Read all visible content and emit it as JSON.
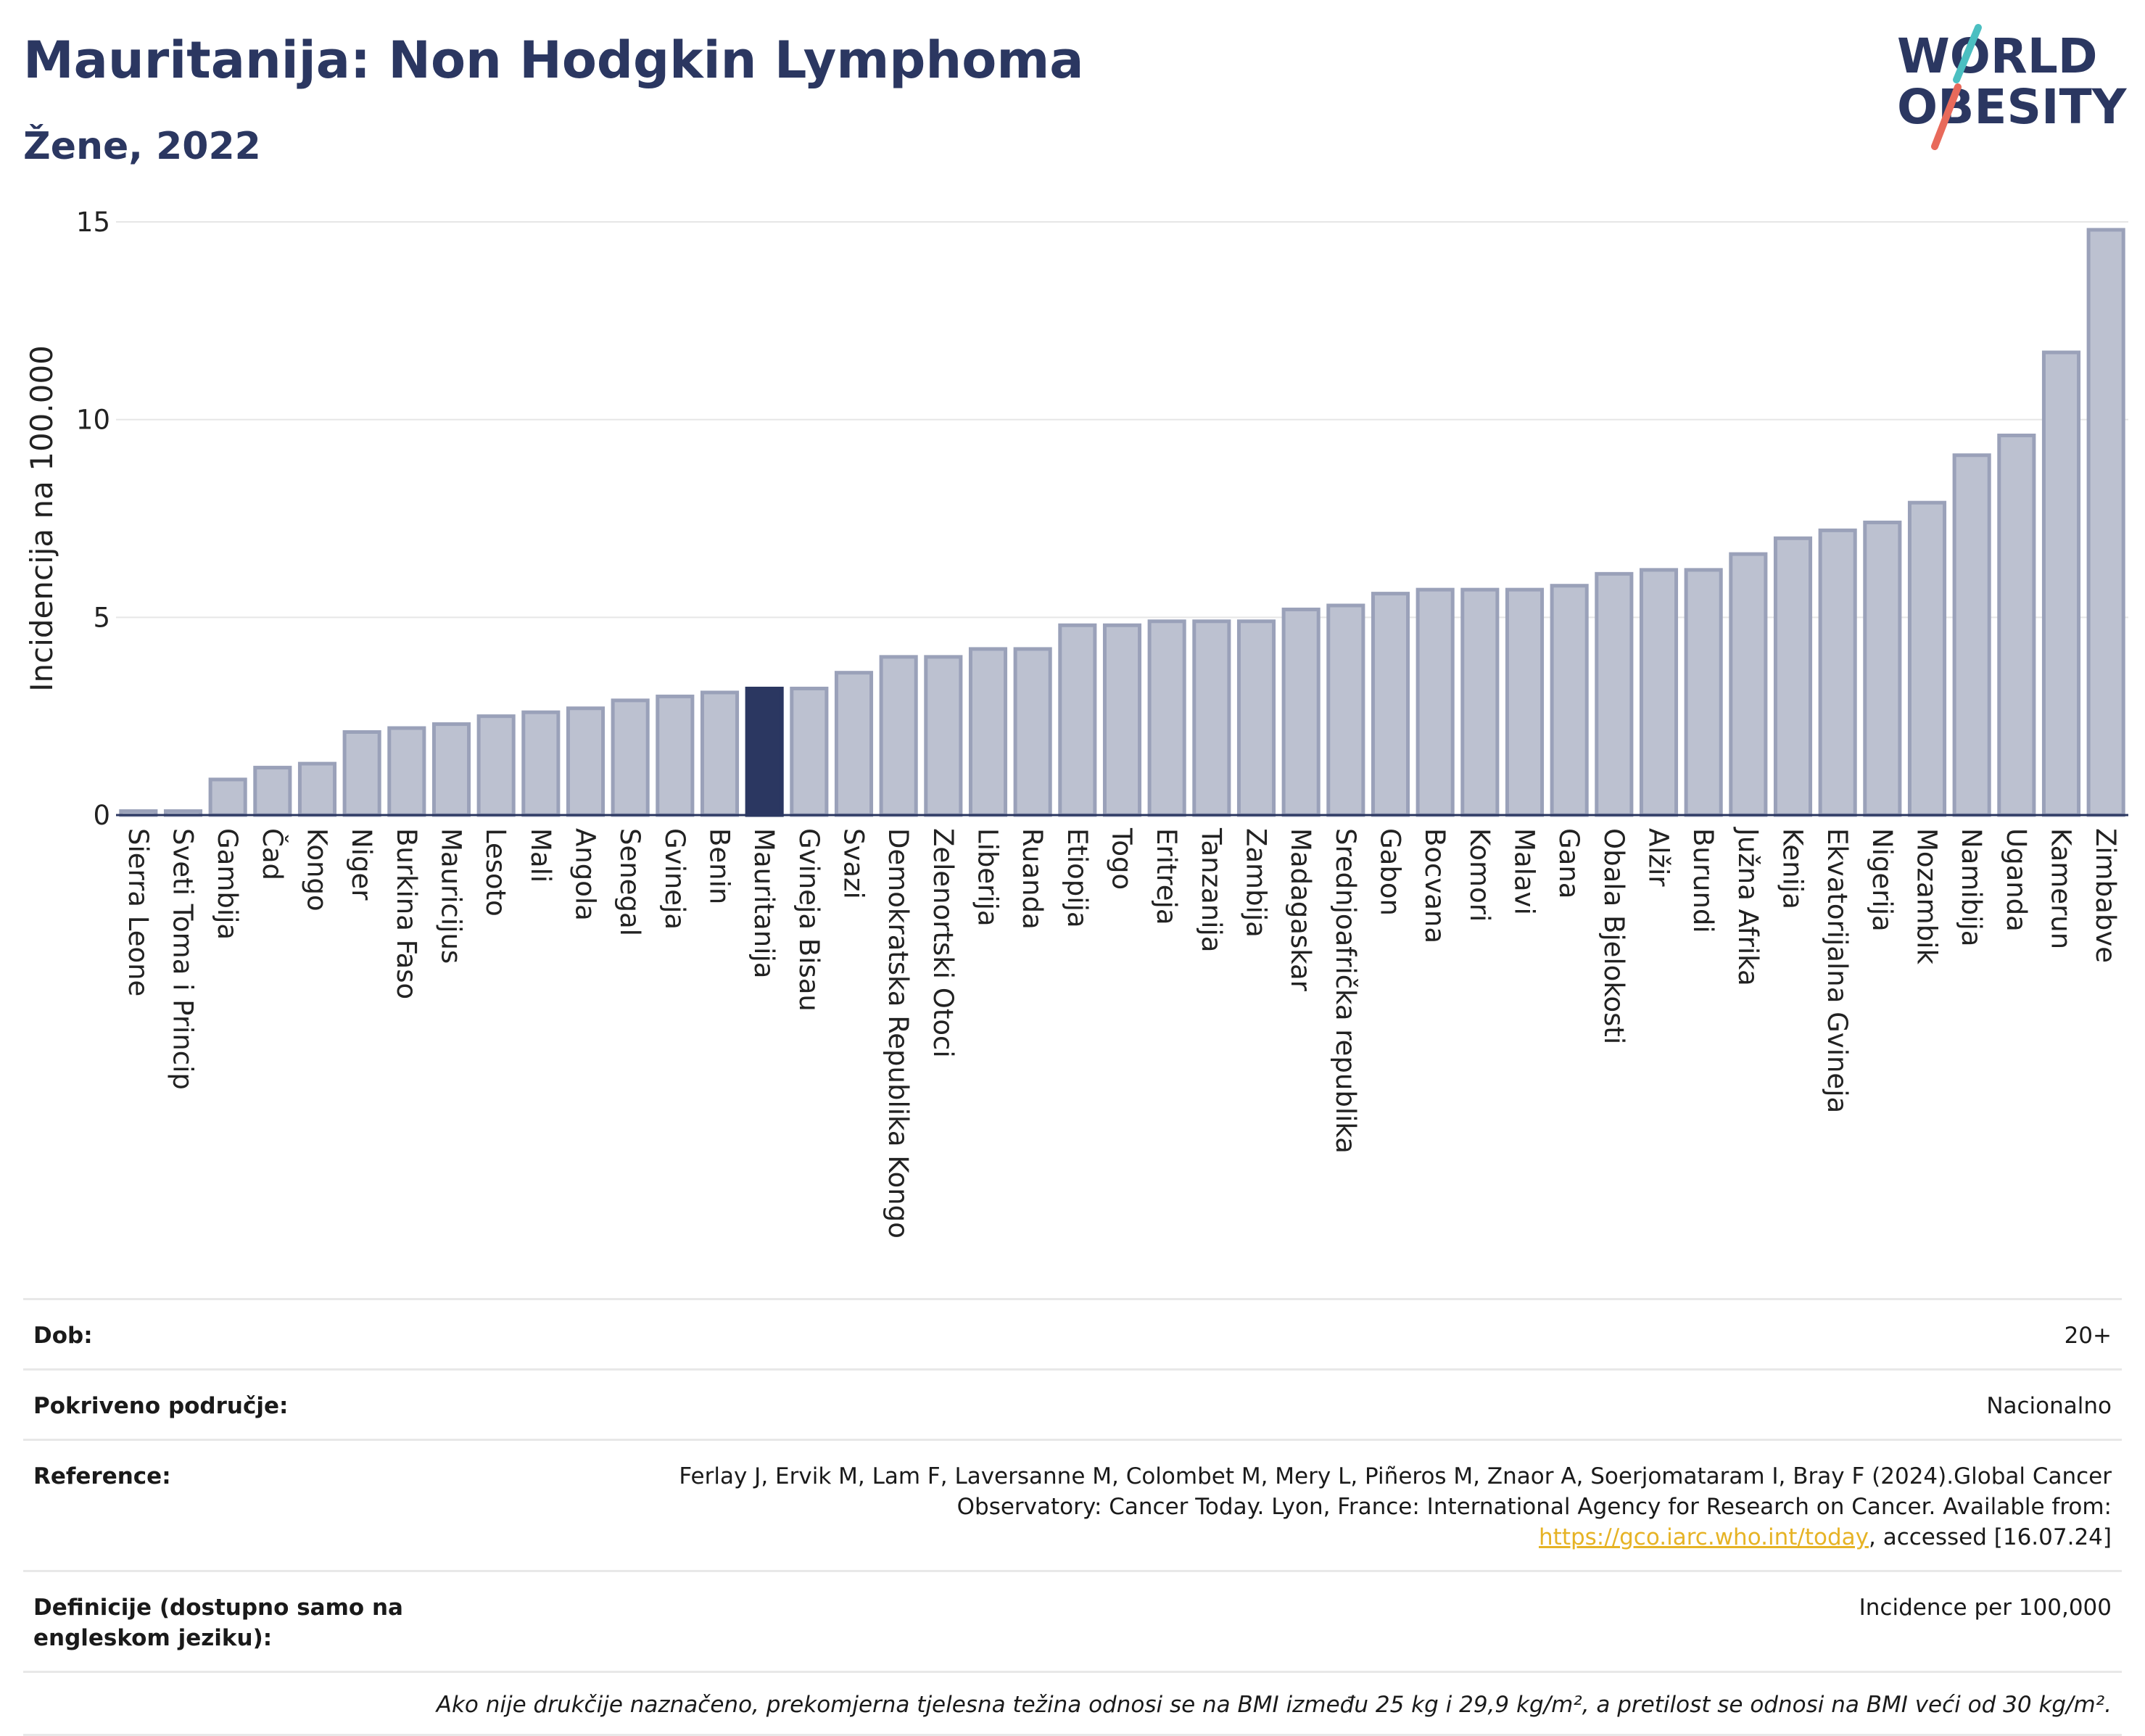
{
  "header": {
    "title": "Mauritanija: Non Hodgkin Lymphoma",
    "subtitle": "Žene, 2022"
  },
  "logo": {
    "line1": "WORLD",
    "line2": "OBESITY",
    "accent_colors": [
      "#4bbfc1",
      "#e86a5b"
    ]
  },
  "colors": {
    "bar": "#bcc1d0",
    "bar_edge": "#9aa1b9",
    "highlight": "#2b3761",
    "grid": "#e6e6e6"
  },
  "chart_data": {
    "type": "bar",
    "title": "",
    "xlabel": "",
    "ylabel": "Incidencija na 100.000",
    "ylim": [
      0,
      15
    ],
    "yticks": [
      0,
      5,
      10,
      15
    ],
    "grid": true,
    "highlight": "Mauritanija",
    "categories": [
      "Sierra Leone",
      "Sveti Toma i Princip",
      "Gambija",
      "Čad",
      "Kongo",
      "Niger",
      "Burkina Faso",
      "Mauricijus",
      "Lesoto",
      "Mali",
      "Angola",
      "Senegal",
      "Gvineja",
      "Benin",
      "Mauritanija",
      "Gvineja Bisau",
      "Svazi",
      "Demokratska Republika Kongo",
      "Zelenortski Otoci",
      "Liberija",
      "Ruanda",
      "Etiopija",
      "Togo",
      "Eritreja",
      "Tanzanija",
      "Zambija",
      "Madagaskar",
      "Srednjoafrička republika",
      "Gabon",
      "Bocvana",
      "Komori",
      "Malavi",
      "Gana",
      "Obala Bjelokosti",
      "Alžir",
      "Burundi",
      "Južna Afrika",
      "Kenija",
      "Ekvatorijalna Gvineja",
      "Nigerija",
      "Mozambik",
      "Namibija",
      "Uganda",
      "Kamerun",
      "Zimbabve"
    ],
    "values": [
      0.1,
      0.1,
      0.9,
      1.2,
      1.3,
      2.1,
      2.2,
      2.3,
      2.5,
      2.6,
      2.7,
      2.9,
      3.0,
      3.1,
      3.2,
      3.2,
      3.6,
      4.0,
      4.0,
      4.2,
      4.2,
      4.8,
      4.8,
      4.9,
      4.9,
      4.9,
      5.2,
      5.3,
      5.6,
      5.7,
      5.7,
      5.7,
      5.8,
      6.1,
      6.2,
      6.2,
      6.6,
      7.0,
      7.2,
      7.4,
      7.9,
      9.1,
      9.6,
      11.7,
      14.8
    ]
  },
  "meta": {
    "age_label": "Dob:",
    "age_value": "20+",
    "area_label": "Pokriveno područje:",
    "area_value": "Nacionalno",
    "ref_label": "Reference:",
    "ref_text1": "Ferlay J, Ervik M, Lam F, Laversanne M, Colombet M, Mery L, Piñeros M, Znaor A, Soerjomataram I, Bray F (2024).Global Cancer Observatory: Cancer Today. Lyon, France: International Agency for Research on Cancer. Available from: ",
    "ref_link": "https://gco.iarc.who.int/today",
    "ref_text2": ", accessed [16.07.24]",
    "def_label": "Definicije (dostupno samo na engleskom jeziku):",
    "def_value": "Incidence per 100,000",
    "note": "Ako nije drukčije naznačeno, prekomjerna tjelesna težina odnosi se na BMI između 25 kg i 29,9 kg/m², a pretilost se odnosi na BMI veći od 30 kg/m²."
  }
}
